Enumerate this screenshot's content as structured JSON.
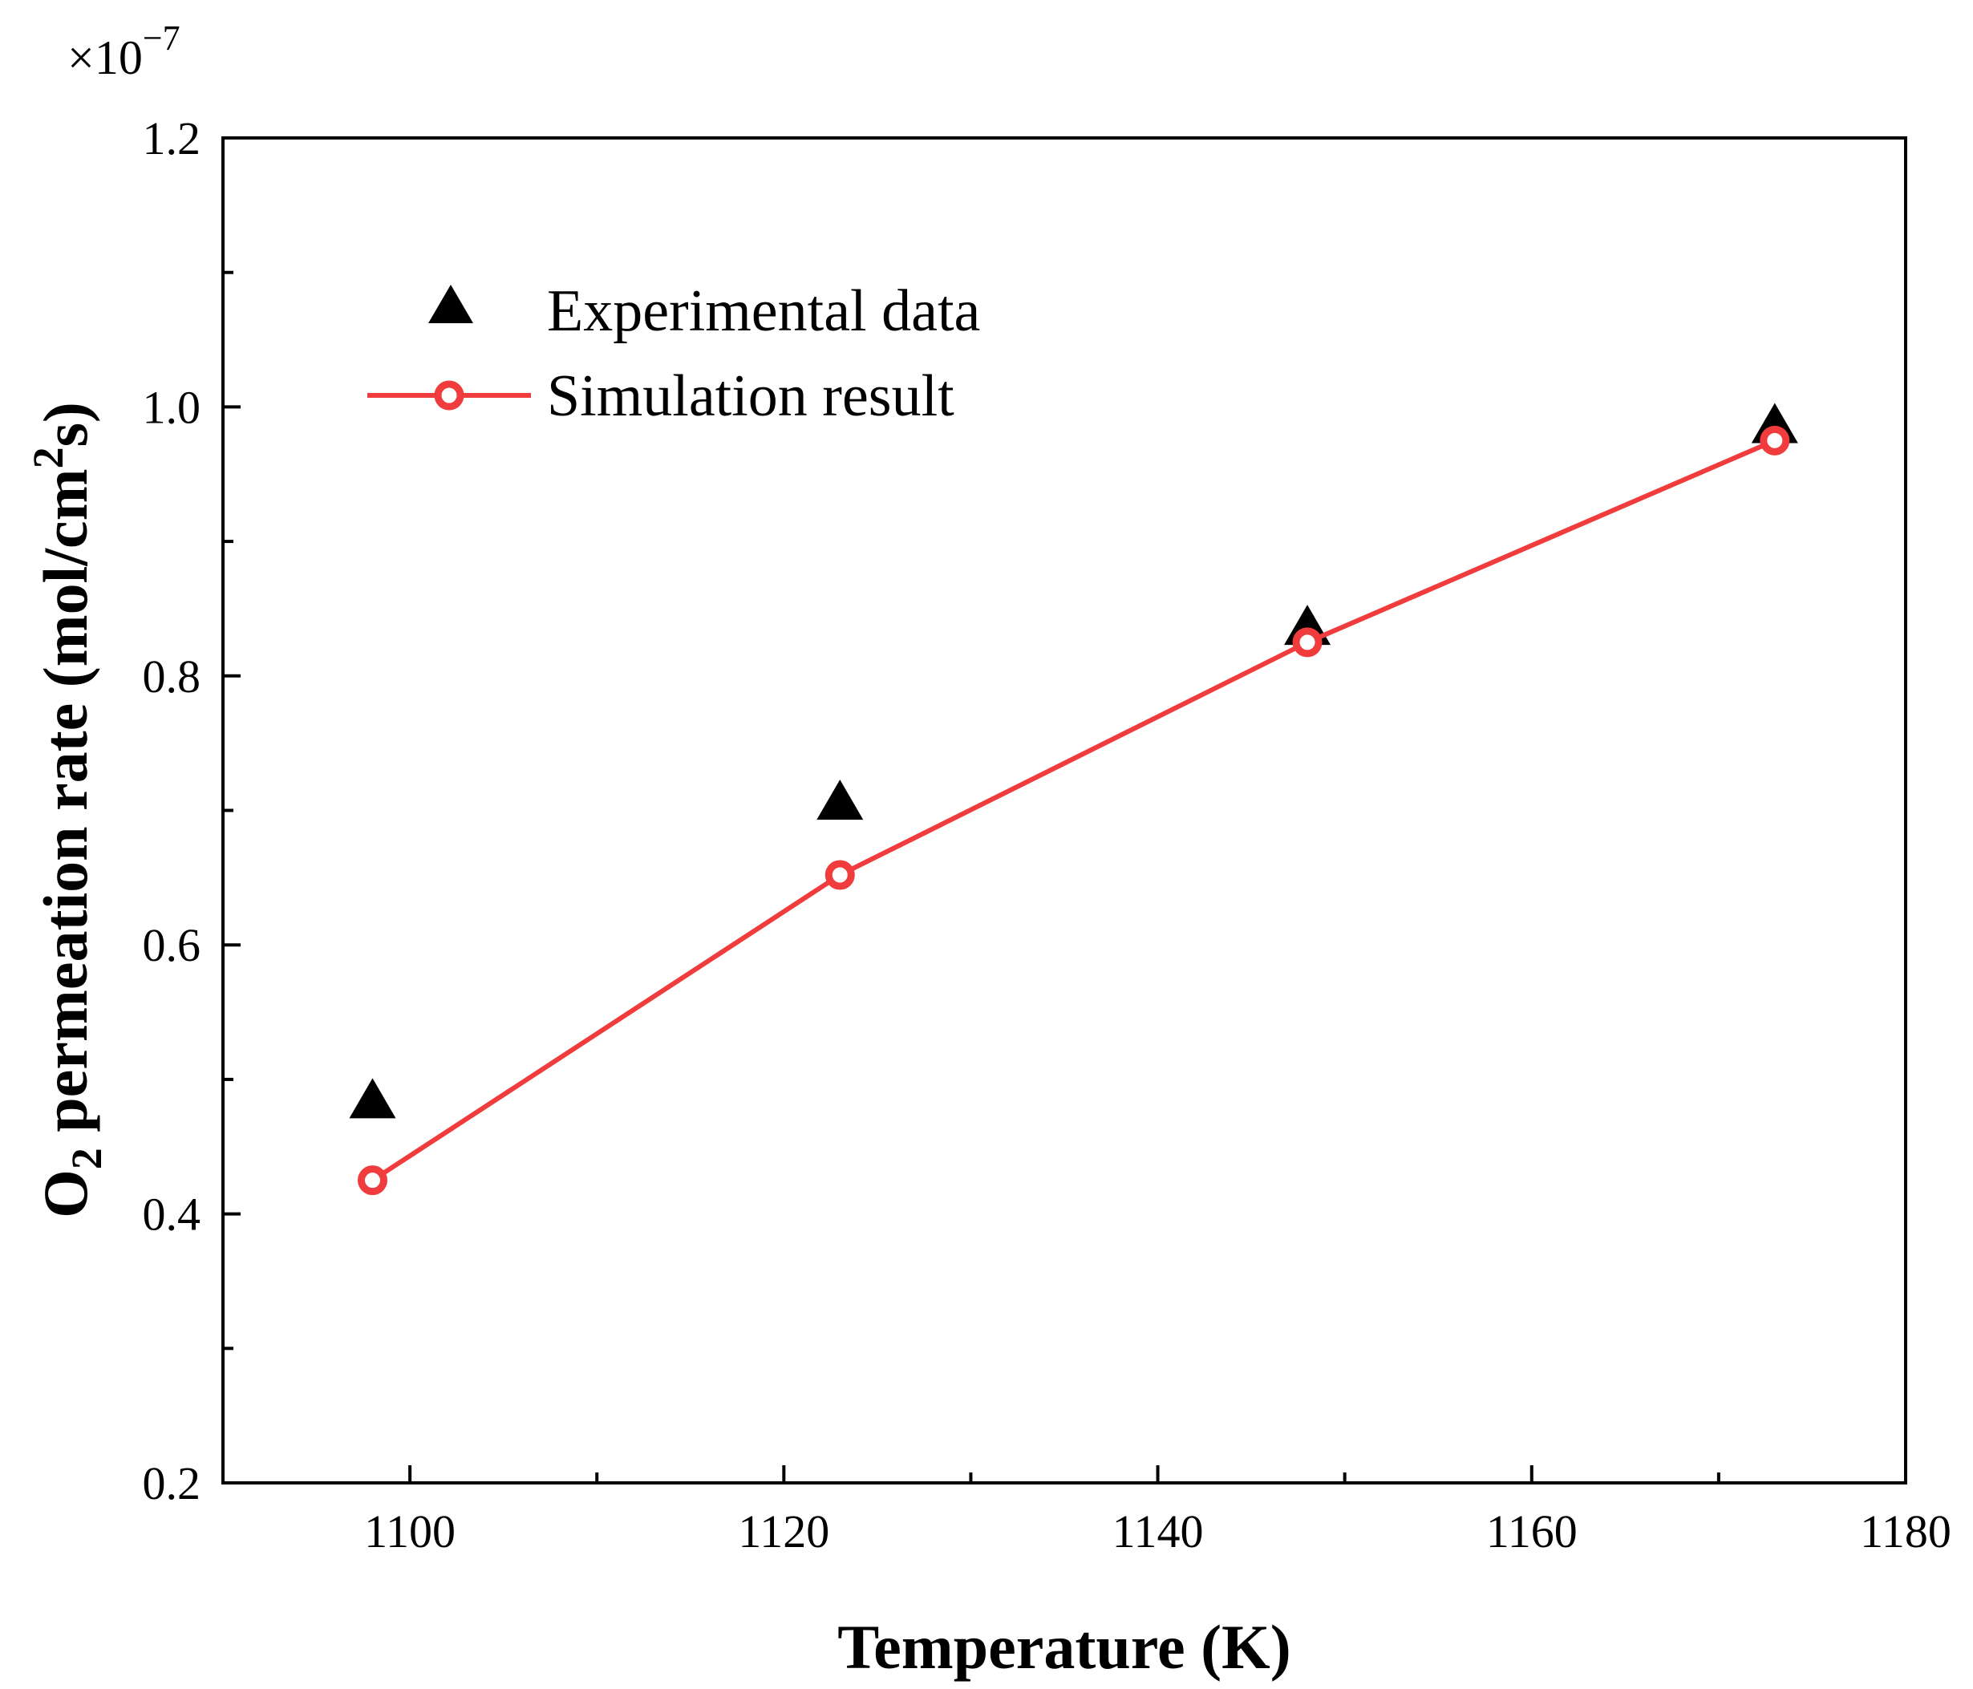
{
  "chart_data": {
    "type": "scatter",
    "xlabel": "Temperature (K)",
    "ylabel": {
      "prefix": "O",
      "subscript": "2",
      "middle": " permeation rate (mol/cm",
      "superscript": "2",
      "suffix": "s)"
    },
    "y_multiplier": {
      "base": "×10",
      "exponent": "−7"
    },
    "xlim": [
      1090,
      1180
    ],
    "ylim": [
      0.2,
      1.2
    ],
    "x_ticks": [
      1100,
      1120,
      1140,
      1160,
      1180
    ],
    "x_tick_labels": [
      "1100",
      "1120",
      "1140",
      "1160",
      "1180"
    ],
    "x_minor_ticks": [
      1090,
      1110,
      1130,
      1150,
      1170
    ],
    "y_ticks": [
      0.2,
      0.4,
      0.6,
      0.8,
      1.0,
      1.2
    ],
    "y_tick_labels": [
      "0.2",
      "0.4",
      "0.6",
      "0.8",
      "1.0",
      "1.2"
    ],
    "y_minor_ticks": [
      0.3,
      0.5,
      0.7,
      0.9,
      1.1
    ],
    "grid": false,
    "legend_position": "top-left",
    "series": [
      {
        "name": "Experimental data",
        "marker": "triangle",
        "line": false,
        "color": "#000000",
        "x": [
          1098,
          1123,
          1148,
          1173
        ],
        "y": [
          0.483,
          0.705,
          0.835,
          0.985
        ]
      },
      {
        "name": "Simulation result",
        "marker": "open-circle",
        "line": true,
        "color": "#f03c3c",
        "x": [
          1098,
          1123,
          1148,
          1173
        ],
        "y": [
          0.425,
          0.652,
          0.825,
          0.975
        ]
      }
    ]
  }
}
